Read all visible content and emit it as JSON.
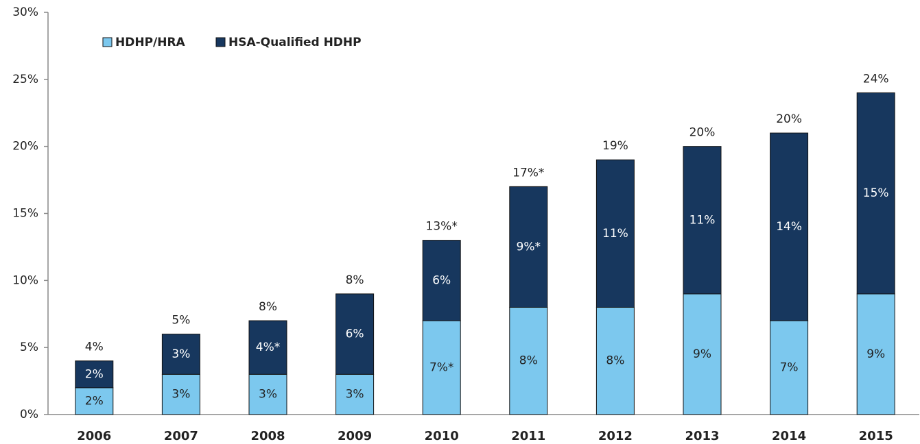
{
  "chart_data": {
    "type": "stacked_bar",
    "categories": [
      "2006",
      "2007",
      "2008",
      "2009",
      "2010",
      "2011",
      "2012",
      "2013",
      "2014",
      "2015"
    ],
    "series": [
      {
        "name": "HDHP/HRA",
        "color": "#7cc8ee",
        "values": [
          2,
          3,
          3,
          3,
          7,
          8,
          8,
          9,
          7,
          9
        ],
        "value_labels": [
          "2%",
          "3%",
          "3%",
          "3%",
          "7%*",
          "8%",
          "8%",
          "9%",
          "7%",
          "9%"
        ]
      },
      {
        "name": "HSA-Qualified HDHP",
        "color": "#17375e",
        "values": [
          2,
          3,
          4,
          6,
          6,
          9,
          11,
          11,
          14,
          15
        ],
        "value_labels": [
          "2%",
          "3%",
          "4%*",
          "6%",
          "6%",
          "9%*",
          "11%",
          "11%",
          "14%",
          "15%"
        ]
      }
    ],
    "total_labels": [
      "4%",
      "5%",
      "8%",
      "8%",
      "13%*",
      "17%*",
      "19%",
      "20%",
      "20%",
      "24%"
    ],
    "ylim": [
      0,
      30
    ],
    "yticks": [
      {
        "value": 0,
        "label": "0%"
      },
      {
        "value": 5,
        "label": "5%"
      },
      {
        "value": 10,
        "label": "10%"
      },
      {
        "value": 15,
        "label": "15%"
      },
      {
        "value": 20,
        "label": "20%"
      },
      {
        "value": 25,
        "label": "25%"
      },
      {
        "value": 30,
        "label": "30%"
      }
    ],
    "legend": "top-left"
  }
}
